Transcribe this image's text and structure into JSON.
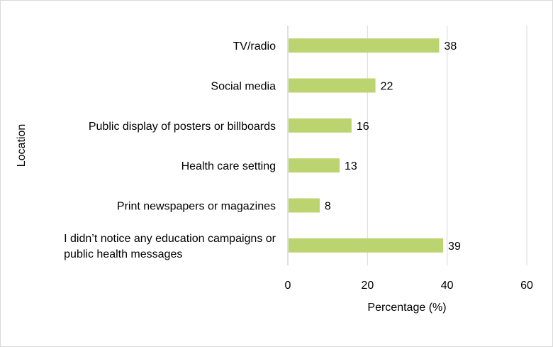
{
  "colors": {
    "bar": "#bcd46f",
    "gridline": "#d9d9d9",
    "axis": "#bfbfbf",
    "text": "#000000"
  },
  "chart_data": {
    "type": "bar",
    "orientation": "horizontal",
    "title": "",
    "xlabel": "Percentage (%)",
    "ylabel": "Location",
    "xlim": [
      0,
      60
    ],
    "xticks": [
      0,
      20,
      40,
      60
    ],
    "grid": true,
    "legend": "none",
    "categories": [
      [
        "TV/radio"
      ],
      [
        "Social media"
      ],
      [
        "Public display of posters or billboards"
      ],
      [
        "Health care setting"
      ],
      [
        "Print newspapers or magazines"
      ],
      [
        "I didn’t notice any education campaigns or",
        "public health messages"
      ]
    ],
    "values": [
      38,
      22,
      16,
      13,
      8,
      39
    ],
    "value_labels": [
      "38",
      "22",
      "16",
      "13",
      "8",
      "39"
    ],
    "tick_labels": [
      "0",
      "20",
      "40",
      "60"
    ]
  }
}
